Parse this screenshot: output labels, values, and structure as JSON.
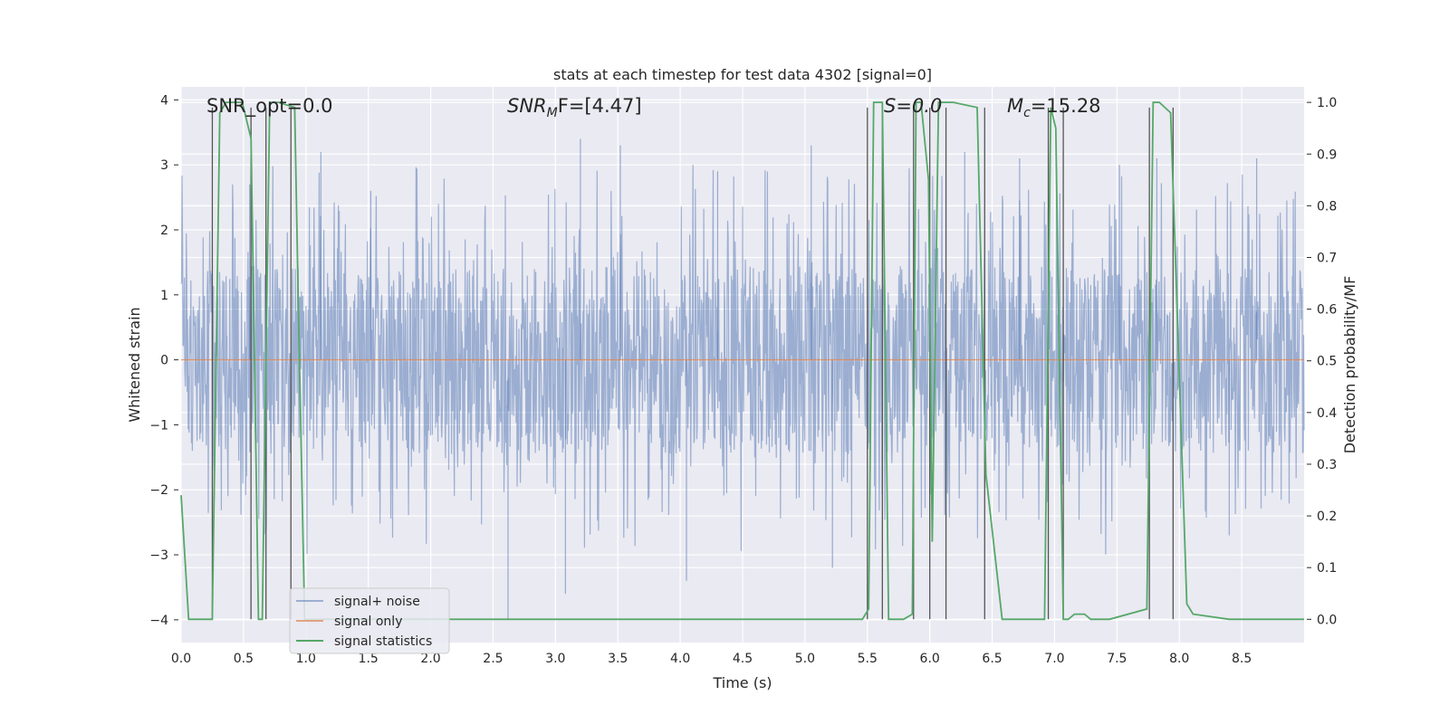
{
  "chart_data": {
    "type": "line",
    "title": "stats at each timestep for test data 4302 [signal=0]",
    "xlabel": "Time (s)",
    "ylabel": "Whitened strain",
    "ylabel_right": "Detection probability/MF",
    "xlim": [
      0.0,
      9.0
    ],
    "ylim": [
      -4.35,
      4.2
    ],
    "ylim_right": [
      -0.045,
      1.03
    ],
    "xticks": [
      "0.0",
      "0.5",
      "1.0",
      "1.5",
      "2.0",
      "2.5",
      "3.0",
      "3.5",
      "4.0",
      "4.5",
      "5.0",
      "5.5",
      "6.0",
      "6.5",
      "7.0",
      "7.5",
      "8.0",
      "8.5"
    ],
    "yticks": [
      "4",
      "3",
      "2",
      "1",
      "0",
      "−1",
      "−2",
      "−3",
      "−4"
    ],
    "yticks_right": [
      "1.0",
      "0.9",
      "0.8",
      "0.7",
      "0.6",
      "0.5",
      "0.4",
      "0.3",
      "0.2",
      "0.1",
      "0.0"
    ],
    "annotations": {
      "snr_opt": "SNR_opt=0.0",
      "snr_mf_main": "SNR",
      "snr_mf_sub": "M",
      "snr_mf_rest": "F=[4.47]",
      "s_label": "S=0.0",
      "mc_main": "M",
      "mc_sub": "c",
      "mc_rest": "=15.28"
    },
    "legend": {
      "position": "lower-left",
      "entries": [
        "signal+ noise",
        "signal only",
        "signal statistics"
      ]
    },
    "series": [
      {
        "name": "signal+ noise",
        "color": "#4c72b0",
        "note": "dense whitened noise, approx uniform |y|<~1.5 with spikes up to ~3.5 and down to ~-4.0",
        "spikes": [
          [
            0.55,
            2.7
          ],
          [
            1.12,
            3.2
          ],
          [
            1.52,
            2.6
          ],
          [
            2.62,
            -4.0
          ],
          [
            3.08,
            -3.6
          ],
          [
            3.2,
            3.4
          ],
          [
            3.52,
            3.3
          ],
          [
            4.05,
            -3.4
          ],
          [
            4.3,
            2.9
          ],
          [
            5.05,
            3.3
          ],
          [
            5.22,
            -3.2
          ],
          [
            6.28,
            3.2
          ],
          [
            6.72,
            3.1
          ],
          [
            7.52,
            3.0
          ],
          [
            7.82,
            3.1
          ],
          [
            8.4,
            -2.7
          ],
          [
            8.62,
            3.1
          ]
        ]
      },
      {
        "name": "signal only",
        "color": "#dd8452",
        "x": [
          0.0,
          9.0
        ],
        "y": [
          0.0,
          0.0
        ]
      },
      {
        "name": "signal statistics",
        "color": "#55a868",
        "axis": "right",
        "x": [
          0.0,
          0.06,
          0.25,
          0.31,
          0.36,
          0.49,
          0.56,
          0.62,
          0.65,
          0.71,
          0.78,
          0.91,
          0.94,
          0.99,
          1.02,
          5.46,
          5.51,
          5.55,
          5.62,
          5.67,
          5.79,
          5.86,
          5.89,
          5.93,
          5.99,
          6.02,
          6.07,
          6.12,
          6.19,
          6.38,
          6.45,
          6.58,
          6.92,
          6.97,
          7.01,
          7.07,
          7.11,
          7.16,
          7.24,
          7.29,
          7.44,
          7.74,
          7.79,
          7.84,
          7.93,
          8.06,
          8.11,
          8.4,
          9.0
        ],
        "y": [
          0.24,
          0.0,
          0.0,
          0.98,
          1.0,
          1.0,
          0.93,
          0.0,
          0.0,
          1.0,
          1.0,
          0.99,
          0.6,
          0.0,
          0.0,
          0.0,
          0.02,
          1.0,
          1.0,
          0.0,
          0.0,
          0.01,
          1.0,
          1.0,
          0.85,
          0.15,
          1.0,
          1.0,
          1.0,
          0.99,
          0.28,
          0.0,
          0.0,
          0.99,
          0.95,
          0.0,
          0.0,
          0.01,
          0.01,
          0.0,
          0.0,
          0.02,
          1.0,
          1.0,
          0.98,
          0.03,
          0.01,
          0.0,
          0.0
        ]
      }
    ],
    "vlines": [
      {
        "x": 0.25,
        "ymax_right": 0.99
      },
      {
        "x": 0.56,
        "ymax_right": 0.99
      },
      {
        "x": 0.68,
        "ymax_right": 0.99
      },
      {
        "x": 0.88,
        "ymax_right": 0.99
      },
      {
        "x": 5.5,
        "ymax_right": 0.99
      },
      {
        "x": 5.62,
        "ymax_right": 0.99
      },
      {
        "x": 5.87,
        "ymax_right": 0.99
      },
      {
        "x": 6.0,
        "ymax_right": 0.99
      },
      {
        "x": 6.13,
        "ymax_right": 0.99
      },
      {
        "x": 6.44,
        "ymax_right": 0.99
      },
      {
        "x": 6.95,
        "ymax_right": 0.99
      },
      {
        "x": 7.07,
        "ymax_right": 0.99
      },
      {
        "x": 7.76,
        "ymax_right": 0.99
      },
      {
        "x": 7.95,
        "ymax_right": 0.99
      }
    ]
  }
}
